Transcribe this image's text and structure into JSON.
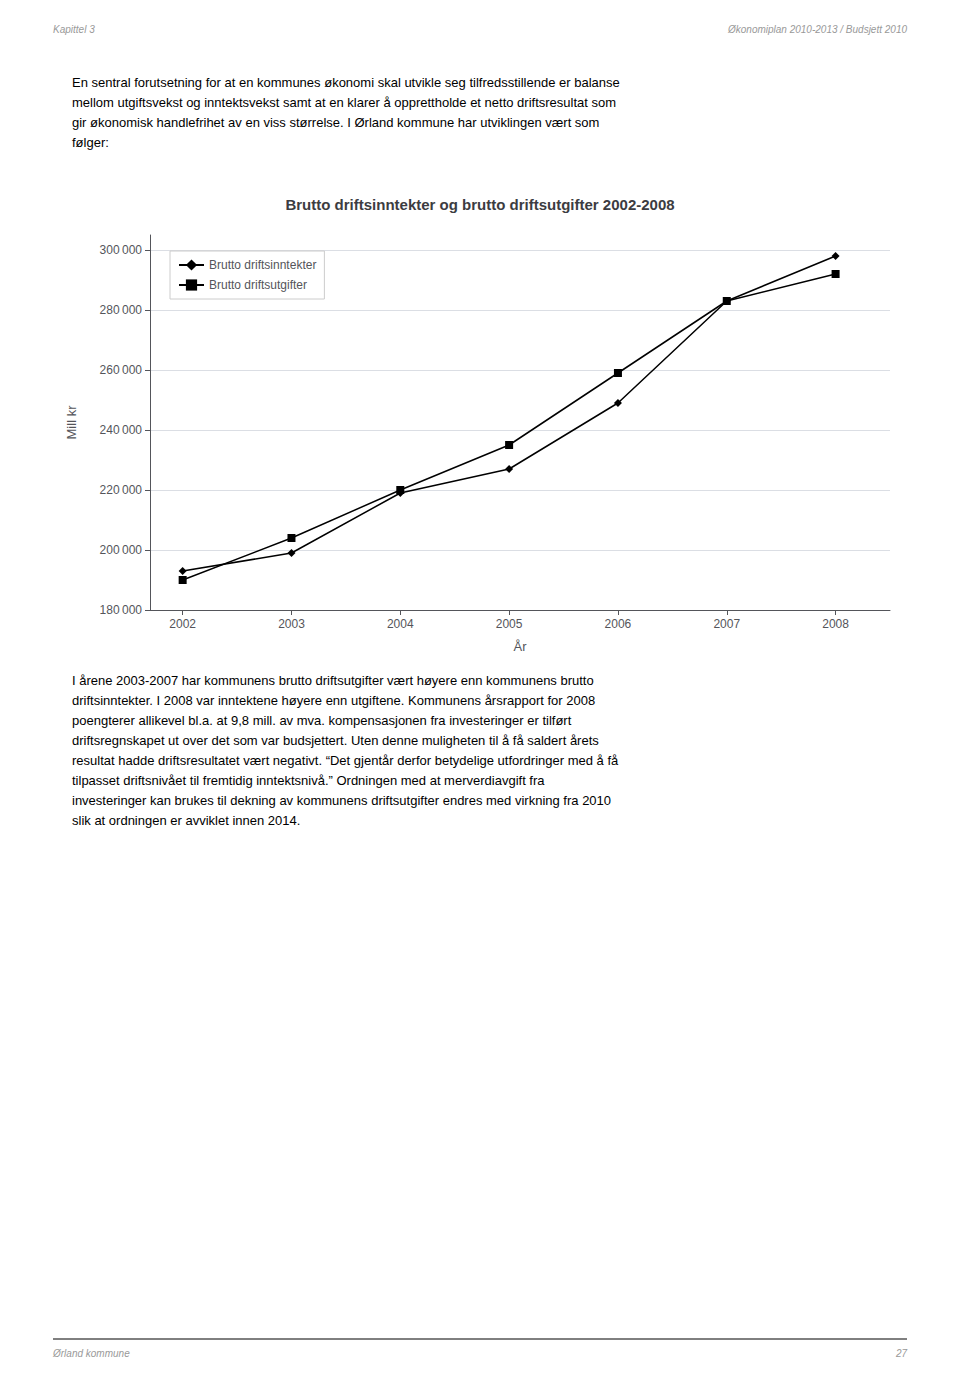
{
  "chart_data": {
    "type": "line",
    "title": "Brutto driftsinntekter og brutto driftsutgifter 2002-2008",
    "xlabel": "År",
    "ylabel": "Mill kr",
    "x": [
      2002,
      2003,
      2004,
      2005,
      2006,
      2007,
      2008
    ],
    "series": [
      {
        "name": "Brutto driftsinntekter",
        "color": "#000000",
        "marker": "diamond",
        "values": [
          193000,
          199000,
          219000,
          227000,
          249000,
          283000,
          298000
        ]
      },
      {
        "name": "Brutto driftsutgifter",
        "color": "#000000",
        "marker": "square",
        "values": [
          190000,
          204000,
          220000,
          235000,
          259000,
          283000,
          292000
        ]
      }
    ],
    "xlim": [
      2001.7,
      2008.5
    ],
    "xticks": [
      2002,
      2003,
      2004,
      2005,
      2006,
      2007,
      2008
    ],
    "ylim": [
      180000,
      305000
    ],
    "yticks": [
      {
        "value": 180000,
        "label": "180 000"
      },
      {
        "value": 200000,
        "label": "200 000"
      },
      {
        "value": 220000,
        "label": "220 000"
      },
      {
        "value": 240000,
        "label": "240 000"
      },
      {
        "value": 260000,
        "label": "260 000"
      },
      {
        "value": 280000,
        "label": "280 000"
      },
      {
        "value": 300000,
        "label": "300 000"
      }
    ],
    "grid": true,
    "legend": "upper left",
    "annotations": [
      "Kapittel 3",
      "Økonomiplan 2010-2013 / Budsjett 2010",
      "En sentral forutsetning for at en kommunes økonomi skal utvikle seg tilfredsstillende er balanse\nmellom utgiftsvekst og inntektsvekst samt at en klarer å opprettholde et netto driftsresultat som\ngir økonomisk handlefrihet av en viss størrelse. I Ørland kommune har utviklingen vært som\nfølger:",
      "I årene 2003-2007 har kommunens brutto driftsutgifter vært høyere enn kommunens brutto\ndriftsinntekter. I 2008 var inntektene høyere enn utgiftene. Kommunens årsrapport for 2008\npoengterer allikevel bl.a. at 9,8 mill. av mva. kompensasjonen fra investeringer er tilført\ndriftsregnskapet ut over det som var budsjettert. Uten denne muligheten til å få saldert årets\nresultat hadde driftsresultatet vært negativt. “Det gjentår derfor betydelige utfordringer med å få\ntilpasset driftsnivået til fremtidig inntektsnivå.” Ordningen med at merverdiavgift fra\ninvesteringer kan brukes til dekning av kommunens driftsutgifter endres med virkning fra 2010\nslik at ordningen er avviklet innen 2014.",
      "Ørland kommune",
      "27"
    ]
  }
}
